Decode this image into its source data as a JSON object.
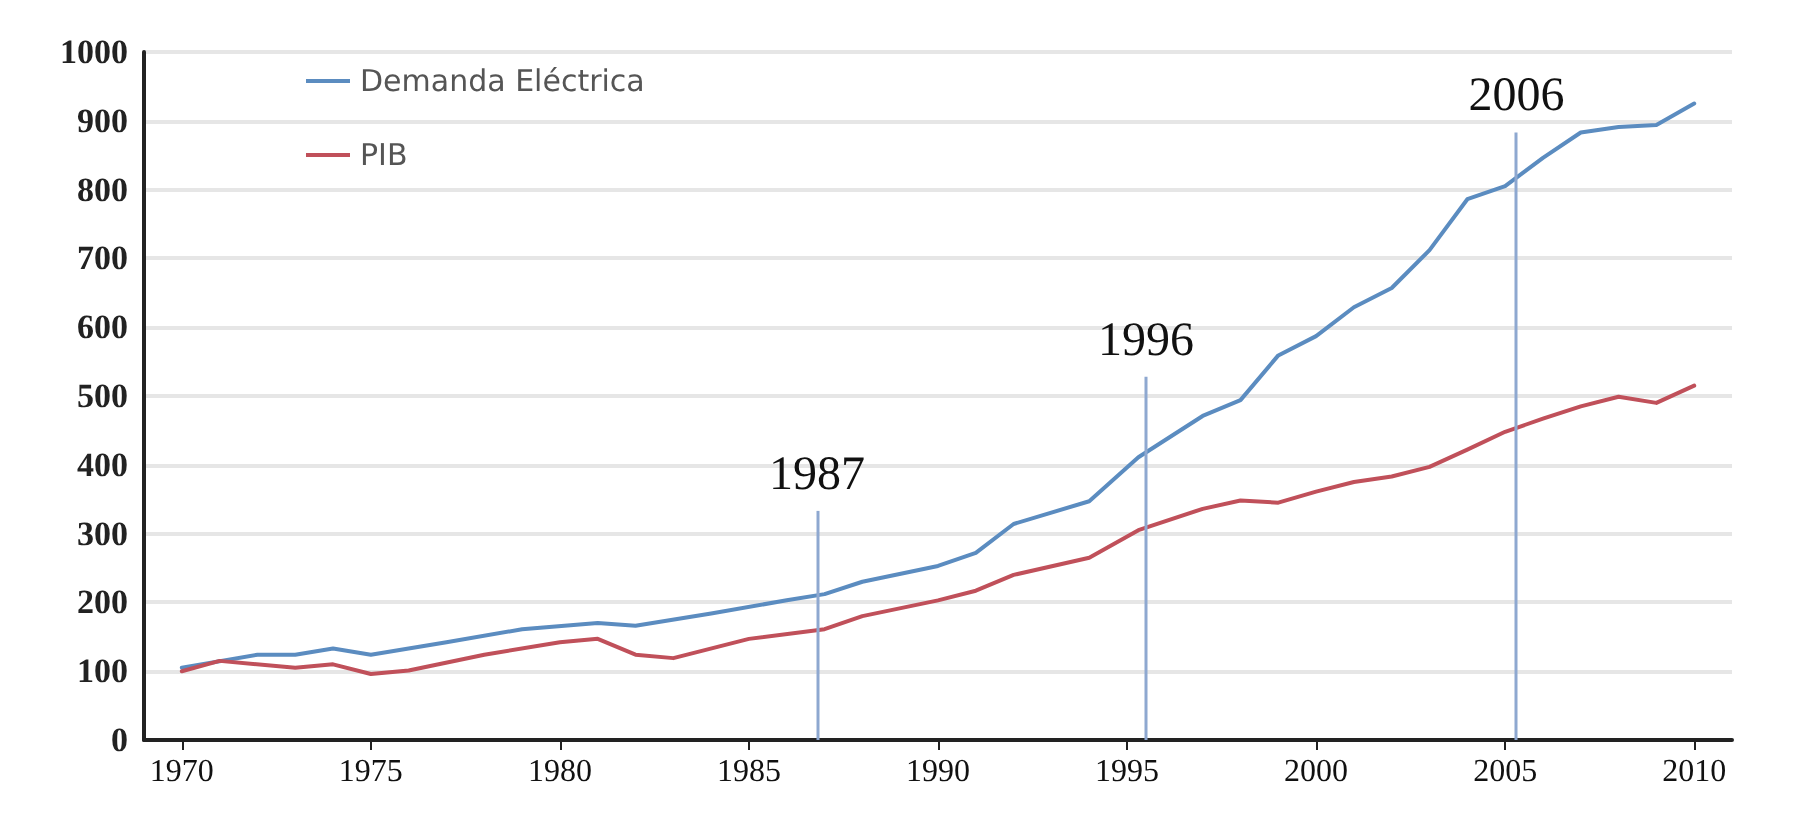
{
  "chart_data": {
    "type": "line",
    "xlim": [
      1969,
      2011
    ],
    "xticks": [
      1970,
      1975,
      1980,
      1985,
      1990,
      1995,
      2000,
      2005,
      2010
    ],
    "ylim": [
      0,
      1000
    ],
    "yticks": [
      0,
      100,
      200,
      300,
      400,
      500,
      600,
      700,
      800,
      900,
      1000
    ],
    "grid": "y",
    "legend": "top left",
    "marker": "none",
    "line_style": "solid",
    "series": [
      {
        "name": "Demanda Eléctrica",
        "color": "#5b8cc0",
        "x": [
          1970,
          1972,
          1973,
          1974,
          1975,
          1977,
          1979,
          1981,
          1982,
          1984,
          1986,
          1987,
          1988,
          1990,
          1991,
          1992,
          1994,
          1995.3,
          1997,
          1998,
          1999,
          2000,
          2001,
          2002,
          2003,
          2004,
          2005,
          2006,
          2007,
          2008,
          2009,
          2010
        ],
        "values": [
          105,
          124,
          124,
          133,
          124,
          142,
          161,
          170,
          166,
          184,
          203,
          212,
          230,
          253,
          272,
          314,
          347,
          411,
          471,
          494,
          559,
          587,
          629,
          657,
          712,
          786,
          805,
          846,
          883,
          891,
          894,
          925
        ]
      },
      {
        "name": "PIB",
        "color": "#c0505a",
        "x": [
          1970,
          1971,
          1973,
          1974,
          1975,
          1976,
          1978,
          1980,
          1981,
          1982,
          1983,
          1985,
          1987,
          1988,
          1990,
          1991,
          1992,
          1994,
          1995.3,
          1997,
          1998,
          1999,
          2000,
          2001,
          2002,
          2003,
          2004,
          2005,
          2006,
          2007,
          2008,
          2009,
          2010
        ],
        "values": [
          100,
          115,
          105,
          110,
          96,
          101,
          124,
          142,
          147,
          124,
          119,
          147,
          161,
          180,
          203,
          217,
          240,
          265,
          305,
          336,
          348,
          345,
          361,
          375,
          383,
          397,
          422,
          448,
          467,
          485,
          499,
          490,
          515
        ]
      }
    ],
    "ref_lines": [
      {
        "axis": "x",
        "value": 1986.8,
        "color": "#8ea8d0"
      },
      {
        "axis": "x",
        "value": 1995.5,
        "color": "#8ea8d0"
      },
      {
        "axis": "x",
        "value": 2005.3,
        "color": "#8ea8d0"
      }
    ],
    "annotations": [
      {
        "text": "1987",
        "x": 1986.8,
        "y": 333
      },
      {
        "text": "1996",
        "x": 1995.5,
        "y": 528
      },
      {
        "text": "2006",
        "x": 2005.3,
        "y": 883
      }
    ]
  }
}
